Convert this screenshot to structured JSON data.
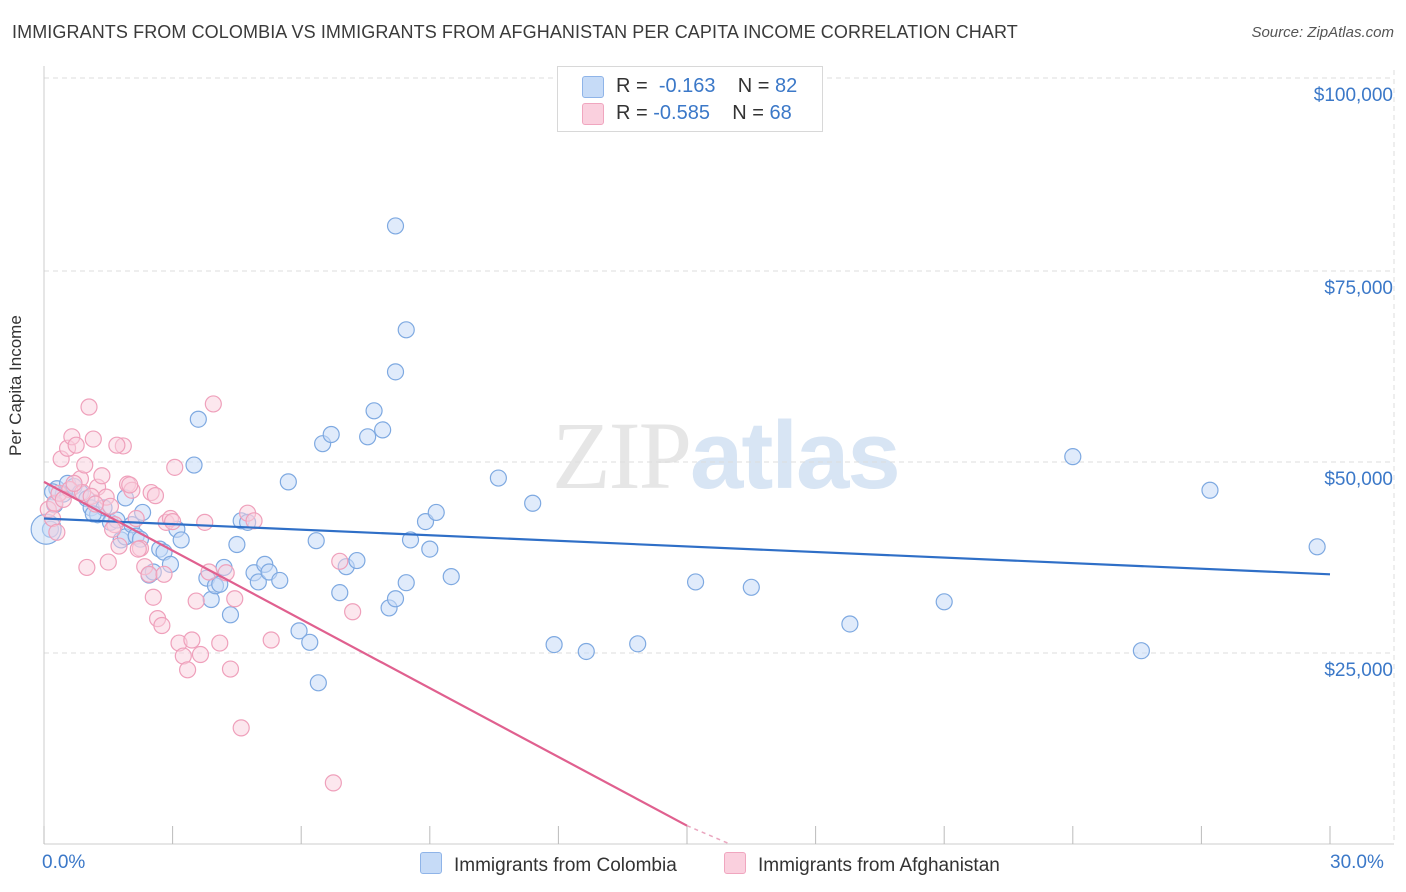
{
  "title": "IMMIGRANTS FROM COLOMBIA VS IMMIGRANTS FROM AFGHANISTAN PER CAPITA INCOME CORRELATION CHART",
  "source": "Source: ZipAtlas.com",
  "watermark": {
    "zip": "ZIP",
    "atlas": "atlas"
  },
  "legend": {
    "r_label": "R =",
    "n_label": "N =",
    "rows": [
      {
        "r": "-0.163",
        "n": "82",
        "color": "#8fb4e8",
        "fill": "#c6dbf7"
      },
      {
        "r": "-0.585",
        "n": "68",
        "color": "#f0a6bf",
        "fill": "#fad0de"
      }
    ]
  },
  "bottom_legend": [
    "Immigrants from Colombia",
    "Immigrants from Afghanistan"
  ],
  "x_axis": {
    "min_label": "0.0%",
    "max_label": "30.0%"
  },
  "y_axis": {
    "label": "Per Capita Income",
    "ticks": [
      "$100,000",
      "$75,000",
      "$50,000",
      "$25,000"
    ]
  },
  "colors": {
    "blue": "#3b78c8",
    "blue_line": "#2f6fc7",
    "pink_line": "#e0608f",
    "grid": "#dddddd"
  },
  "chart_data": {
    "type": "scatter",
    "xlim": [
      0,
      30
    ],
    "ylim": [
      0,
      100000
    ],
    "ytick_values": [
      100000,
      75000,
      50000,
      25000
    ],
    "xlabel": "",
    "ylabel": "Per Capita Income",
    "grid": true,
    "series": [
      {
        "name": "Immigrants from Colombia",
        "r": -0.163,
        "n": 82,
        "trend": {
          "x": [
            0,
            30
          ],
          "y": [
            42600,
            35300
          ]
        },
        "points": [
          [
            0.15,
            41200
          ],
          [
            0.3,
            46500
          ],
          [
            0.45,
            45800
          ],
          [
            0.55,
            47200
          ],
          [
            0.7,
            46800
          ],
          [
            0.85,
            46000
          ],
          [
            1.0,
            45200
          ],
          [
            1.1,
            44000
          ],
          [
            1.25,
            43100
          ],
          [
            1.4,
            44000
          ],
          [
            1.55,
            42100
          ],
          [
            1.7,
            42400
          ],
          [
            1.8,
            39800
          ],
          [
            1.9,
            40200
          ],
          [
            2.05,
            41800
          ],
          [
            2.15,
            40300
          ],
          [
            2.3,
            43400
          ],
          [
            2.45,
            35200
          ],
          [
            2.55,
            35600
          ],
          [
            2.7,
            38600
          ],
          [
            2.8,
            38200
          ],
          [
            2.95,
            36600
          ],
          [
            3.1,
            41200
          ],
          [
            3.2,
            39800
          ],
          [
            3.5,
            49600
          ],
          [
            3.6,
            55600
          ],
          [
            3.8,
            34800
          ],
          [
            3.9,
            32000
          ],
          [
            4.0,
            33800
          ],
          [
            4.1,
            34000
          ],
          [
            4.2,
            36200
          ],
          [
            4.35,
            30000
          ],
          [
            4.5,
            39200
          ],
          [
            4.6,
            42300
          ],
          [
            4.75,
            42100
          ],
          [
            4.9,
            35500
          ],
          [
            5.0,
            34300
          ],
          [
            5.15,
            36600
          ],
          [
            5.25,
            35600
          ],
          [
            5.5,
            34500
          ],
          [
            6.4,
            21100
          ],
          [
            5.7,
            47400
          ],
          [
            5.95,
            27900
          ],
          [
            6.2,
            26400
          ],
          [
            6.35,
            39700
          ],
          [
            6.5,
            52400
          ],
          [
            6.7,
            53600
          ],
          [
            6.9,
            32900
          ],
          [
            7.05,
            36300
          ],
          [
            7.3,
            37100
          ],
          [
            7.55,
            53300
          ],
          [
            7.7,
            56700
          ],
          [
            7.9,
            54200
          ],
          [
            8.05,
            30900
          ],
          [
            8.2,
            32100
          ],
          [
            8.45,
            34200
          ],
          [
            8.9,
            42200
          ],
          [
            8.55,
            39800
          ],
          [
            9.0,
            38600
          ],
          [
            9.15,
            43400
          ],
          [
            9.5,
            35000
          ],
          [
            8.2,
            61800
          ],
          [
            8.45,
            67300
          ],
          [
            8.2,
            80900
          ],
          [
            10.6,
            47900
          ],
          [
            11.4,
            44600
          ],
          [
            11.9,
            26100
          ],
          [
            12.65,
            25200
          ],
          [
            13.85,
            26200
          ],
          [
            15.2,
            34300
          ],
          [
            16.5,
            33600
          ],
          [
            18.8,
            28800
          ],
          [
            21.0,
            31700
          ],
          [
            24.0,
            50700
          ],
          [
            25.6,
            25300
          ],
          [
            27.2,
            46300
          ],
          [
            29.7,
            38900
          ],
          [
            0.2,
            46100
          ],
          [
            0.25,
            44400
          ],
          [
            1.15,
            43200
          ],
          [
            1.9,
            45300
          ],
          [
            2.25,
            39900
          ]
        ]
      },
      {
        "name": "Immigrants from Afghanistan",
        "r": -0.585,
        "n": 68,
        "trend": {
          "x": [
            0,
            15
          ],
          "y": [
            47400,
            2400
          ]
        },
        "trend_dashed": {
          "x": [
            15,
            16
          ],
          "y": [
            2400,
            -600
          ]
        },
        "points": [
          [
            0.1,
            43800
          ],
          [
            0.2,
            42600
          ],
          [
            0.25,
            44600
          ],
          [
            0.3,
            40800
          ],
          [
            0.4,
            50400
          ],
          [
            0.55,
            51800
          ],
          [
            0.65,
            53300
          ],
          [
            0.75,
            52200
          ],
          [
            0.85,
            47800
          ],
          [
            0.95,
            49600
          ],
          [
            1.05,
            57200
          ],
          [
            1.15,
            53000
          ],
          [
            1.25,
            46700
          ],
          [
            1.35,
            48200
          ],
          [
            1.45,
            45400
          ],
          [
            1.55,
            44200
          ],
          [
            1.65,
            41800
          ],
          [
            1.75,
            39000
          ],
          [
            1.85,
            52100
          ],
          [
            1.95,
            47100
          ],
          [
            2.05,
            46300
          ],
          [
            2.15,
            42600
          ],
          [
            2.25,
            38700
          ],
          [
            2.35,
            36300
          ],
          [
            2.45,
            35300
          ],
          [
            2.55,
            32300
          ],
          [
            2.65,
            29500
          ],
          [
            2.75,
            28600
          ],
          [
            2.85,
            42100
          ],
          [
            2.95,
            42600
          ],
          [
            3.05,
            49300
          ],
          [
            3.15,
            26300
          ],
          [
            3.25,
            24600
          ],
          [
            3.35,
            22800
          ],
          [
            3.45,
            26700
          ],
          [
            3.55,
            31800
          ],
          [
            3.65,
            24800
          ],
          [
            3.75,
            42100
          ],
          [
            3.85,
            35600
          ],
          [
            3.95,
            57600
          ],
          [
            4.1,
            26300
          ],
          [
            4.25,
            35500
          ],
          [
            4.35,
            22900
          ],
          [
            4.45,
            32100
          ],
          [
            4.6,
            15200
          ],
          [
            4.75,
            43300
          ],
          [
            4.9,
            42300
          ],
          [
            5.3,
            26700
          ],
          [
            6.75,
            8000
          ],
          [
            6.9,
            37000
          ],
          [
            7.2,
            30400
          ],
          [
            0.35,
            45900
          ],
          [
            0.6,
            46400
          ],
          [
            0.9,
            46000
          ],
          [
            1.0,
            36200
          ],
          [
            1.5,
            36900
          ],
          [
            1.7,
            52200
          ],
          [
            2.0,
            47000
          ],
          [
            2.5,
            46000
          ],
          [
            2.6,
            45600
          ],
          [
            2.8,
            35300
          ],
          [
            3.0,
            42200
          ],
          [
            1.1,
            45500
          ],
          [
            1.6,
            41200
          ],
          [
            2.2,
            38600
          ],
          [
            0.45,
            45100
          ],
          [
            0.7,
            47200
          ],
          [
            1.2,
            44500
          ]
        ]
      }
    ]
  }
}
